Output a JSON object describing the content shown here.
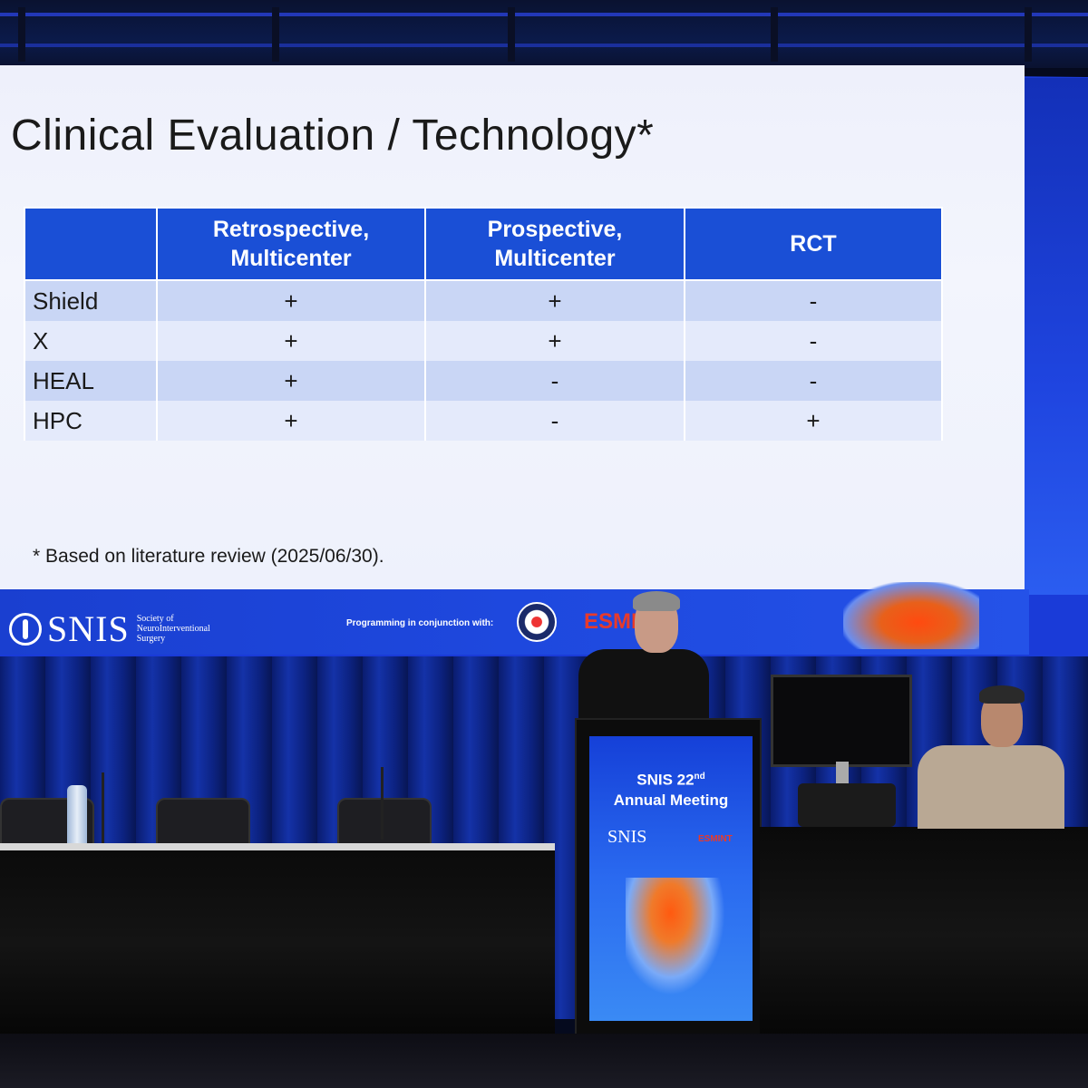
{
  "slide": {
    "title": "Clinical Evaluation / Technology*",
    "table": {
      "columns": [
        "",
        "Retrospective, Multicenter",
        "Prospective, Multicenter",
        "RCT"
      ],
      "rows": [
        {
          "label": "Shield",
          "cells": [
            "+",
            "+",
            "-"
          ]
        },
        {
          "label": "X",
          "cells": [
            "+",
            "+",
            "-"
          ]
        },
        {
          "label": "HEAL",
          "cells": [
            "+",
            "-",
            "-"
          ]
        },
        {
          "label": "HPC",
          "cells": [
            "+",
            "-",
            "+"
          ]
        }
      ]
    },
    "footnote": "* Based on literature review (2025/06/30)."
  },
  "banner": {
    "logo_word": "SNIS",
    "logo_sub": "Society of NeuroInterventional Surgery",
    "conjunction": "Programming in conjunction with:",
    "partner": "ESMI"
  },
  "podium": {
    "meeting_line1": "SNIS 22",
    "meeting_sup": "nd",
    "meeting_line2": "Annual Meeting",
    "logo_word": "SNIS",
    "partner": "ESMINT"
  },
  "colors": {
    "table_header": "#1a4fd6",
    "row_shade": "#c9d6f5",
    "banner_blue": "#1e48de",
    "esmint_red": "#e83a2a"
  }
}
